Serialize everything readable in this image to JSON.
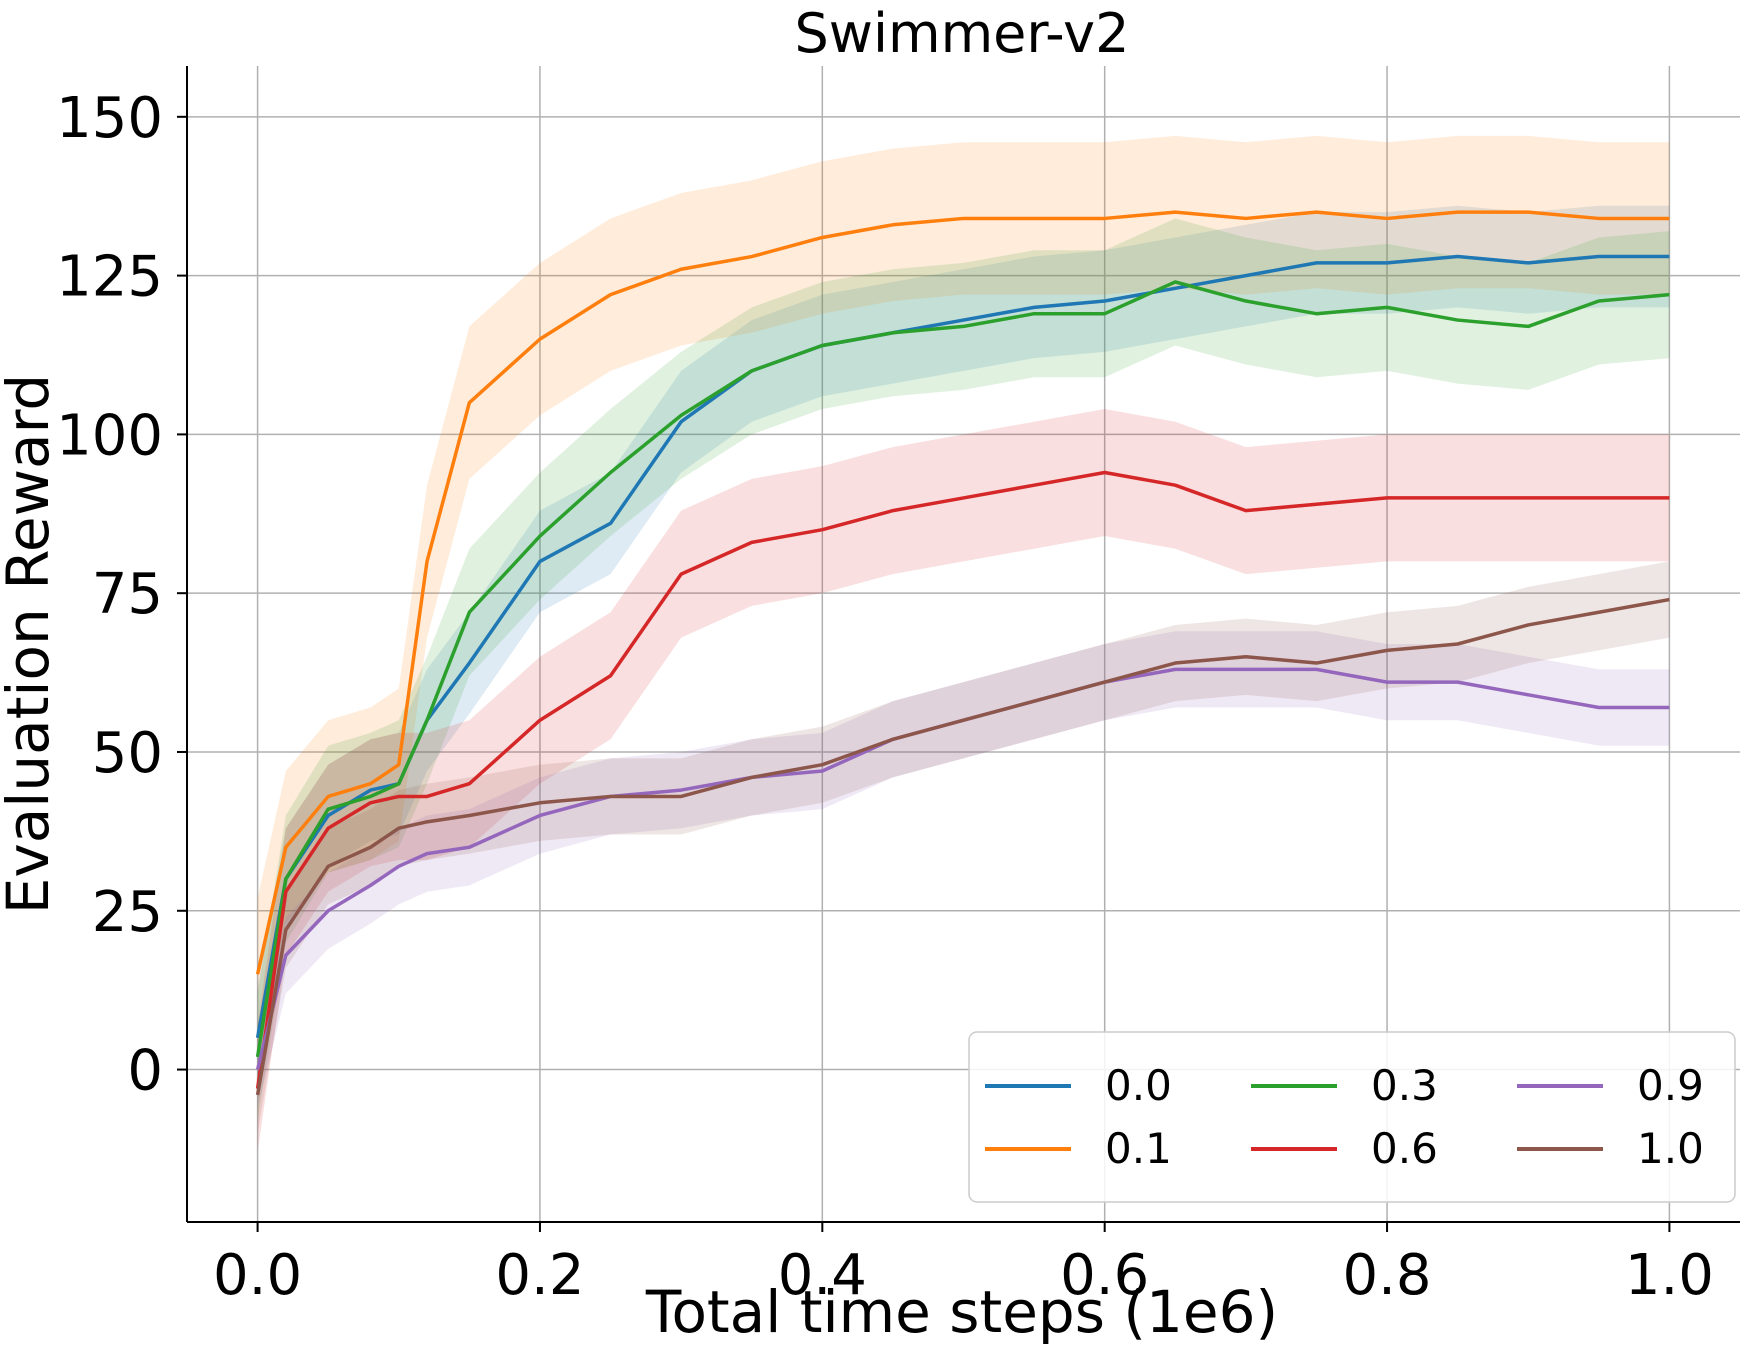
{
  "chart_data": {
    "type": "line",
    "title": "Swimmer-v2",
    "xlabel": "Total time steps (1e6)",
    "ylabel": "Evaluation Reward",
    "xlim": [
      -0.05,
      1.05
    ],
    "ylim": [
      -24,
      158
    ],
    "xticks": [
      0.0,
      0.2,
      0.4,
      0.6,
      0.8,
      1.0
    ],
    "xtick_labels": [
      "0.0",
      "0.2",
      "0.4",
      "0.6",
      "0.8",
      "1.0"
    ],
    "yticks": [
      0,
      25,
      50,
      75,
      100,
      125,
      150
    ],
    "ytick_labels": [
      "0",
      "25",
      "50",
      "75",
      "100",
      "125",
      "150"
    ],
    "grid": true,
    "legend": {
      "placement": "bottom-right",
      "columns": 3
    },
    "x": [
      0.0,
      0.02,
      0.05,
      0.08,
      0.1,
      0.12,
      0.15,
      0.2,
      0.25,
      0.3,
      0.35,
      0.4,
      0.45,
      0.5,
      0.55,
      0.6,
      0.65,
      0.7,
      0.75,
      0.8,
      0.85,
      0.9,
      0.95,
      1.0
    ],
    "series": [
      {
        "name": "0.0",
        "color": "#1f77b4",
        "values": [
          5,
          30,
          40,
          44,
          45,
          55,
          64,
          80,
          86,
          102,
          110,
          114,
          116,
          118,
          120,
          121,
          123,
          125,
          127,
          127,
          128,
          127,
          128,
          128
        ],
        "band": 8
      },
      {
        "name": "0.1",
        "color": "#ff7f0e",
        "values": [
          15,
          35,
          43,
          45,
          48,
          80,
          105,
          115,
          122,
          126,
          128,
          131,
          133,
          134,
          134,
          134,
          135,
          134,
          135,
          134,
          135,
          135,
          134,
          134
        ],
        "band": 12
      },
      {
        "name": "0.3",
        "color": "#2ca02c",
        "values": [
          2,
          30,
          41,
          43,
          45,
          55,
          72,
          84,
          94,
          103,
          110,
          114,
          116,
          117,
          119,
          119,
          124,
          121,
          119,
          120,
          118,
          117,
          121,
          122
        ],
        "band": 10
      },
      {
        "name": "0.6",
        "color": "#d62728",
        "values": [
          -3,
          28,
          38,
          42,
          43,
          43,
          45,
          55,
          62,
          78,
          83,
          85,
          88,
          90,
          92,
          94,
          92,
          88,
          89,
          90,
          90,
          90,
          90,
          90
        ],
        "band": 10
      },
      {
        "name": "0.9",
        "color": "#9467bd",
        "values": [
          0,
          18,
          25,
          29,
          32,
          34,
          35,
          40,
          43,
          44,
          46,
          47,
          52,
          55,
          58,
          61,
          63,
          63,
          63,
          61,
          61,
          59,
          57,
          57
        ],
        "band": 6
      },
      {
        "name": "1.0",
        "color": "#8c564b",
        "values": [
          -4,
          22,
          32,
          35,
          38,
          39,
          40,
          42,
          43,
          43,
          46,
          48,
          52,
          55,
          58,
          61,
          64,
          65,
          64,
          66,
          67,
          70,
          72,
          74
        ],
        "band": 6
      }
    ]
  }
}
